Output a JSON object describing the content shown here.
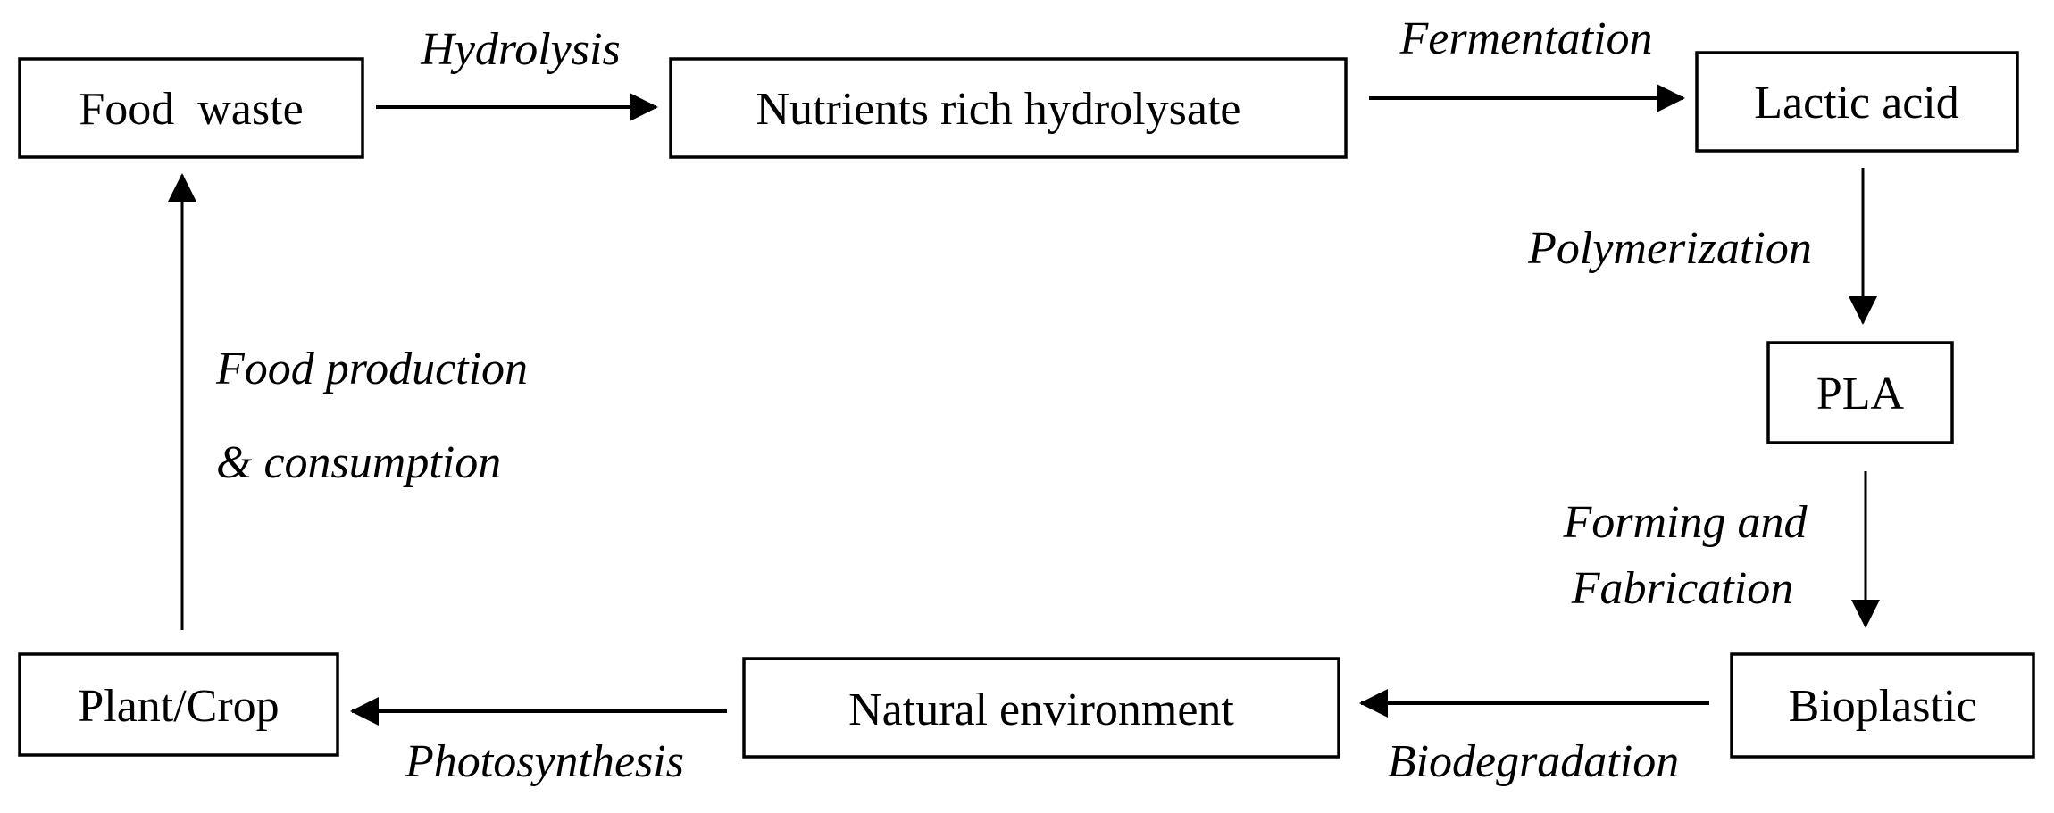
{
  "nodes": {
    "food_waste": "Food  waste",
    "hydrolysate": "Nutrients rich hydrolysate",
    "lactic_acid": "Lactic acid",
    "pla": "PLA",
    "bioplastic": "Bioplastic",
    "natural_environment": "Natural environment",
    "plant_crop": "Plant/Crop"
  },
  "edges": {
    "hydrolysis": "Hydrolysis",
    "fermentation": "Fermentation",
    "polymerization": "Polymerization",
    "forming_line1": "Forming and",
    "forming_line2": "Fabrication",
    "biodegradation": "Biodegradation",
    "photosynthesis": "Photosynthesis",
    "food_production_line1": "Food production",
    "food_production_line2": "& consumption"
  }
}
